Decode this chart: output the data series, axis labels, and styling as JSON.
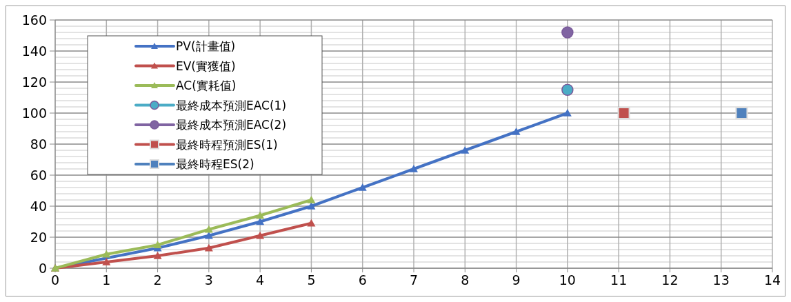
{
  "chart_data": {
    "type": "line",
    "xlim": [
      0,
      14
    ],
    "xticks": [
      0,
      1,
      2,
      3,
      4,
      5,
      6,
      7,
      8,
      9,
      10,
      11,
      12,
      13,
      14
    ],
    "ylim": [
      0,
      160
    ],
    "yticks": [
      0,
      20,
      40,
      60,
      80,
      100,
      120,
      140,
      160
    ],
    "grid": true,
    "legend": "top left",
    "series": [
      {
        "name": "PV(計畫值)",
        "color": "#4472c4",
        "marker": "triangle",
        "x": [
          0,
          1,
          2,
          3,
          4,
          5,
          6,
          7,
          8,
          9,
          10
        ],
        "values": [
          0,
          null,
          13,
          21,
          30,
          40,
          52,
          64,
          76,
          88,
          100
        ]
      },
      {
        "name": "EV(實獲值)",
        "color": "#c0504d",
        "marker": "triangle",
        "x": [
          0,
          1,
          2,
          3,
          4,
          5
        ],
        "values": [
          0,
          4,
          8,
          13,
          21,
          29
        ]
      },
      {
        "name": "AC(實耗值)",
        "color": "#9bbb59",
        "marker": "triangle",
        "x": [
          0,
          1,
          2,
          3,
          4,
          5
        ],
        "values": [
          0,
          9,
          15,
          25,
          34,
          44
        ]
      },
      {
        "name": "最終成本預測EAC(1)",
        "type": "scatter",
        "color": "#4bacc6",
        "marker": "circle",
        "x": [
          10
        ],
        "values": [
          115
        ]
      },
      {
        "name": "最終成本預測EAC(2)",
        "type": "scatter",
        "color": "#8064a2",
        "marker": "circle",
        "x": [
          10
        ],
        "values": [
          152
        ]
      },
      {
        "name": "最終時程預測ES(1)",
        "type": "scatter",
        "color": "#c0504d",
        "marker": "square",
        "x": [
          11.1
        ],
        "values": [
          100
        ]
      },
      {
        "name": "最終時程ES(2)",
        "type": "scatter",
        "color": "#4f81bd",
        "marker": "square",
        "x": [
          13.4
        ],
        "values": [
          100
        ]
      }
    ]
  }
}
